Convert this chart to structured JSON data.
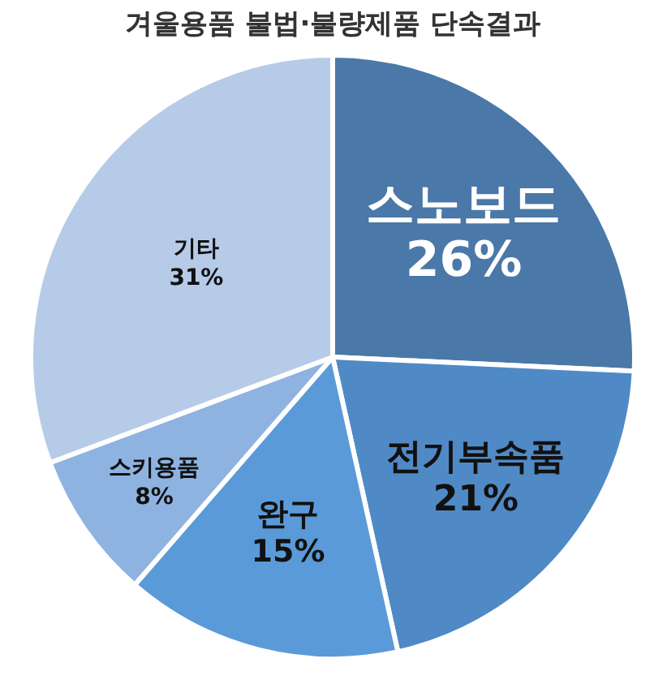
{
  "chart_data": {
    "type": "pie",
    "title": "겨울용품 불법·불량제품 단속결과",
    "categories": [
      "스노보드",
      "전기부속품",
      "완구",
      "스키용품",
      "기타"
    ],
    "values": [
      26,
      21,
      15,
      8,
      31
    ],
    "colors": [
      "#4a78a8",
      "#4f8ac6",
      "#5b9ad8",
      "#8fb3e0",
      "#b6cbe8"
    ],
    "value_labels": [
      "26%",
      "21%",
      "15%",
      "8%",
      "31%"
    ]
  }
}
